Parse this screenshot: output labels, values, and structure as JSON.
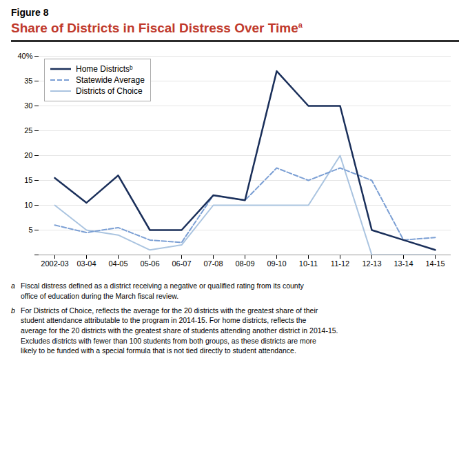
{
  "chart_data": {
    "type": "line",
    "figure_label": "Figure 8",
    "title": "Share of Districts in Fiscal Distress Over Time",
    "title_note": "a",
    "categories": [
      "2002-03",
      "03-04",
      "04-05",
      "05-06",
      "06-07",
      "07-08",
      "08-09",
      "09-10",
      "10-11",
      "11-12",
      "12-13",
      "13-14",
      "14-15"
    ],
    "series": [
      {
        "name": "Home Districtsᵇ",
        "color": "#1a2f5a",
        "line_style": "solid",
        "values": [
          15.5,
          10.5,
          16,
          5,
          5,
          12,
          11,
          37,
          30,
          30,
          5,
          3,
          1
        ]
      },
      {
        "name": "Statewide Average",
        "color": "#7b9fd4",
        "line_style": "dashed",
        "values": [
          6,
          4.5,
          5.5,
          3,
          2.5,
          12,
          11,
          17.5,
          15,
          17.5,
          15,
          3,
          3.5
        ]
      },
      {
        "name": "Districts of Choice",
        "color": "#aac4e0",
        "line_style": "solid",
        "values": [
          10,
          5,
          4,
          1,
          2,
          10,
          10,
          10,
          10,
          20,
          0,
          0,
          0
        ]
      }
    ],
    "ylim": [
      0,
      40
    ],
    "yticks": [
      {
        "value": 0,
        "label": null
      },
      5,
      10,
      15,
      20,
      25,
      30,
      35,
      {
        "value": 40,
        "label": "40%"
      }
    ],
    "grid": true,
    "legend": "upper left",
    "footnotes": [
      {
        "marker": "a",
        "text": "Fiscal distress defined as a district receiving a negative or qualified rating from its county\noffice of education during the March fiscal review."
      },
      {
        "marker": "b",
        "text": "For Districts of Choice, reflects the average for the 20 districts with the greatest share of their\nstudent attendance attributable to the program in 2014-15. For home districts, reflects the\naverage for the 20 districts with the greatest share of students attending another district in 2014-15.\nExcludes districts with fewer than 100 students from both groups, as these districts are more\nlikely to be funded with a special formula that is not tied directly to student attendance."
      }
    ]
  }
}
